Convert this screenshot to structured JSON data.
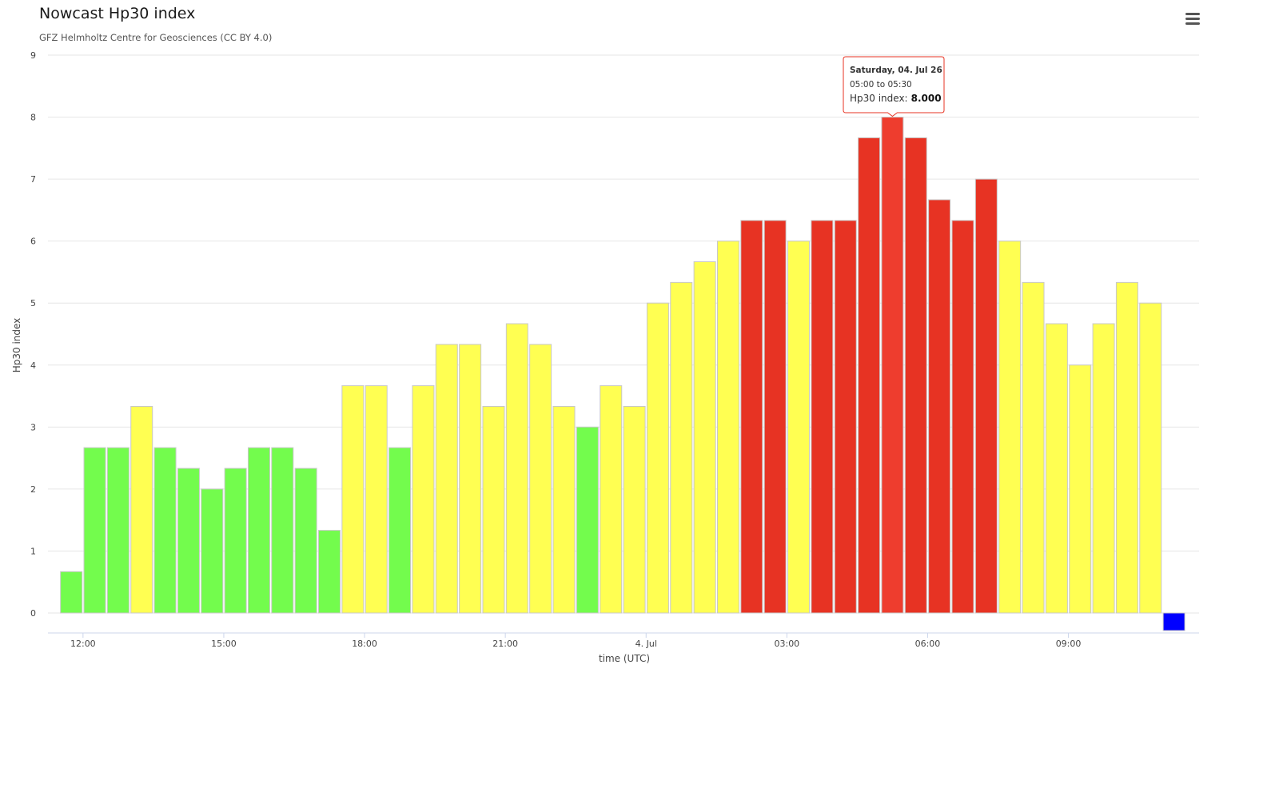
{
  "chart_data": {
    "type": "bar",
    "title": "Nowcast Hp30 index",
    "subtitle": "GFZ Helmholtz Centre for Geosciences (CC BY 4.0)",
    "xlabel": "time (UTC)",
    "ylabel": "Hp30 index",
    "ylim": [
      0,
      9
    ],
    "y_ticks": [
      "0",
      "1",
      "2",
      "3",
      "4",
      "5",
      "6",
      "7",
      "8",
      "9"
    ],
    "x_ticks": [
      {
        "label": "12:00",
        "slot": 1
      },
      {
        "label": "15:00",
        "slot": 7
      },
      {
        "label": "18:00",
        "slot": 13
      },
      {
        "label": "21:00",
        "slot": 19
      },
      {
        "label": "4. Jul",
        "slot": 25
      },
      {
        "label": "03:00",
        "slot": 31
      },
      {
        "label": "06:00",
        "slot": 37
      },
      {
        "label": "09:00",
        "slot": 43
      }
    ],
    "x_start": "2026-07-03 11:30 UTC",
    "interval": "30 min",
    "grid": true,
    "values": [
      0.667,
      2.667,
      2.667,
      3.333,
      2.667,
      2.333,
      2.0,
      2.333,
      2.667,
      2.667,
      2.333,
      1.333,
      3.667,
      3.667,
      2.667,
      3.667,
      4.333,
      4.333,
      3.333,
      4.667,
      4.333,
      3.333,
      3.0,
      3.667,
      3.333,
      5.0,
      5.333,
      5.667,
      6.0,
      6.333,
      6.333,
      6.0,
      6.333,
      6.333,
      7.667,
      8.0,
      7.667,
      6.667,
      6.333,
      7.0,
      6.0,
      5.333,
      4.667,
      4.0,
      4.667,
      5.333,
      5.0,
      0
    ],
    "colors": [
      "#73fc4d",
      "#73fc4d",
      "#73fc4d",
      "#ffff52",
      "#73fc4d",
      "#73fc4d",
      "#73fc4d",
      "#73fc4d",
      "#73fc4d",
      "#73fc4d",
      "#73fc4d",
      "#73fc4d",
      "#ffff52",
      "#ffff52",
      "#73fc4d",
      "#ffff52",
      "#ffff52",
      "#ffff52",
      "#ffff52",
      "#ffff52",
      "#ffff52",
      "#ffff52",
      "#73fc4d",
      "#ffff52",
      "#ffff52",
      "#ffff52",
      "#ffff52",
      "#ffff52",
      "#ffff52",
      "#e73323",
      "#e73323",
      "#ffff52",
      "#e73323",
      "#e73323",
      "#e73323",
      "#e73323",
      "#e73323",
      "#e73323",
      "#e73323",
      "#e73323",
      "#ffff52",
      "#ffff52",
      "#ffff52",
      "#ffff52",
      "#ffff52",
      "#ffff52",
      "#ffff52",
      "#0000ff"
    ],
    "highlight_index": 35,
    "tooltip": {
      "date": "Saturday, 04. Jul 26",
      "range": "05:00 to 05:30",
      "label": "Hp30 index:",
      "value": "8.000"
    }
  },
  "ui": {
    "menu_icon": "hamburger-menu-icon"
  }
}
